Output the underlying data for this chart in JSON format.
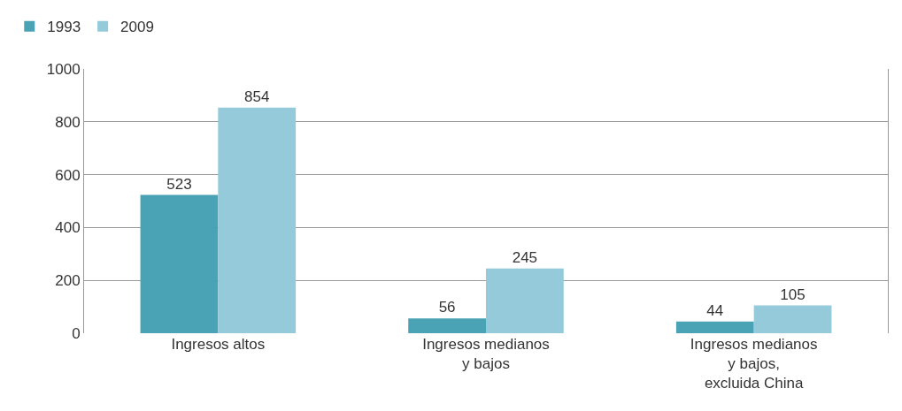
{
  "chart_data": {
    "type": "bar",
    "categories": [
      "Ingresos altos",
      "Ingresos medianos\ny bajos",
      "Ingresos medianos\ny bajos,\nexcluida China"
    ],
    "series": [
      {
        "name": "1993",
        "color": "#4aa3b5",
        "values": [
          523,
          56,
          44
        ]
      },
      {
        "name": "2009",
        "color": "#94cad9",
        "values": [
          854,
          245,
          105
        ]
      }
    ],
    "ylim": [
      0,
      1000
    ],
    "yticks": [
      0,
      200,
      400,
      600,
      800,
      1000
    ],
    "grid": "y",
    "legend": "top left",
    "data_labels": true
  }
}
